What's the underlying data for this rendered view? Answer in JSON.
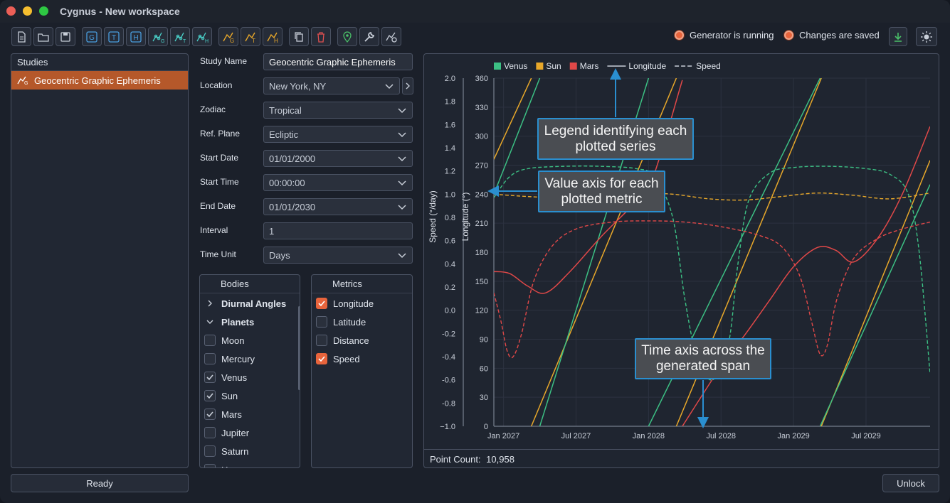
{
  "window": {
    "title": "Cygnus - New workspace"
  },
  "toolbar": {
    "buttons": [
      {
        "name": "new-file-icon",
        "color": "#c8ced8"
      },
      {
        "name": "open-folder-icon",
        "color": "#c8ced8"
      },
      {
        "name": "save-icon",
        "color": "#c8ced8"
      },
      {
        "name": "g-study-icon",
        "color": "#4a9fe0",
        "glyph": "G"
      },
      {
        "name": "t-study-icon",
        "color": "#4a9fe0",
        "glyph": "T"
      },
      {
        "name": "h-study-icon",
        "color": "#4a9fe0",
        "glyph": "H"
      },
      {
        "name": "graph-g-icon",
        "color": "#4ad0c8"
      },
      {
        "name": "graph-t-icon",
        "color": "#4ad0c8"
      },
      {
        "name": "graph-h-icon",
        "color": "#4ad0c8"
      },
      {
        "name": "chart-g-icon",
        "color": "#e8a82a"
      },
      {
        "name": "chart-t-icon",
        "color": "#e8a82a"
      },
      {
        "name": "chart-h-icon",
        "color": "#e8a82a"
      },
      {
        "name": "copy-icon",
        "color": "#c8ced8"
      },
      {
        "name": "trash-icon",
        "color": "#e05050"
      },
      {
        "name": "location-pin-icon",
        "color": "#4ac068"
      },
      {
        "name": "wrench-icon",
        "color": "#c8ced8"
      },
      {
        "name": "settings-gear-icon",
        "color": "#c8ced8"
      }
    ],
    "status_generator": "Generator is running",
    "status_saved": "Changes are saved"
  },
  "studies": {
    "header": "Studies",
    "items": [
      {
        "label": "Geocentric Graphic Ephemeris"
      }
    ]
  },
  "status_bar": {
    "ready": "Ready",
    "unlock": "Unlock"
  },
  "form": {
    "study_name": {
      "label": "Study Name",
      "value": "Geocentric Graphic Ephemeris"
    },
    "location": {
      "label": "Location",
      "value": "New York, NY"
    },
    "zodiac": {
      "label": "Zodiac",
      "value": "Tropical"
    },
    "ref_plane": {
      "label": "Ref. Plane",
      "value": "Ecliptic"
    },
    "start_date": {
      "label": "Start Date",
      "value": "01/01/2000"
    },
    "start_time": {
      "label": "Start Time",
      "value": "00:00:00"
    },
    "end_date": {
      "label": "End Date",
      "value": "01/01/2030"
    },
    "interval": {
      "label": "Interval",
      "value": "1"
    },
    "time_unit": {
      "label": "Time Unit",
      "value": "Days"
    }
  },
  "bodies": {
    "header": "Bodies",
    "groups": [
      {
        "label": "Diurnal Angles",
        "expanded": false
      },
      {
        "label": "Planets",
        "expanded": true
      }
    ],
    "items": [
      {
        "label": "Moon",
        "checked": false
      },
      {
        "label": "Mercury",
        "checked": false
      },
      {
        "label": "Venus",
        "checked": true
      },
      {
        "label": "Sun",
        "checked": true
      },
      {
        "label": "Mars",
        "checked": true
      },
      {
        "label": "Jupiter",
        "checked": false
      },
      {
        "label": "Saturn",
        "checked": false
      },
      {
        "label": "U...",
        "checked": false
      }
    ]
  },
  "metrics": {
    "header": "Metrics",
    "items": [
      {
        "label": "Longitude",
        "checked": true
      },
      {
        "label": "Latitude",
        "checked": false
      },
      {
        "label": "Distance",
        "checked": false
      },
      {
        "label": "Speed",
        "checked": true
      }
    ]
  },
  "point_count": {
    "label": "Point Count:",
    "value": "10,958"
  },
  "callouts": {
    "legend": "Legend identifying each plotted series",
    "value_axis": "Value axis for each plotted metric",
    "time_axis": "Time axis across the generated span"
  },
  "chart_data": {
    "type": "line",
    "legend": [
      {
        "name": "Venus",
        "kind": "swatch",
        "color": "#3cc084"
      },
      {
        "name": "Sun",
        "kind": "swatch",
        "color": "#e8a82a"
      },
      {
        "name": "Mars",
        "kind": "swatch",
        "color": "#e04848"
      },
      {
        "name": "Longitude",
        "kind": "solid",
        "color": "#c8ced8"
      },
      {
        "name": "Speed",
        "kind": "dashed",
        "color": "#c8ced8"
      }
    ],
    "x_ticks": [
      "Jan 2027",
      "Jul 2027",
      "Jan 2028",
      "Jul 2028",
      "Jan 2029",
      "Jul 2029"
    ],
    "x_tick_months": [
      0,
      6,
      12,
      18,
      24,
      30
    ],
    "x_range_months": [
      -0.8,
      35.3
    ],
    "y_left": {
      "label": "Speed (°/day)",
      "range": [
        -1.0,
        2.0
      ],
      "ticks": [
        "2.0",
        "1.8",
        "1.6",
        "1.4",
        "1.2",
        "1.0",
        "0.8",
        "0.6",
        "0.4",
        "0.2",
        "0.0",
        "-0.2",
        "-0.4",
        "-0.6",
        "-0.8",
        "−1.0"
      ]
    },
    "y_right": {
      "label": "Longitude (°)",
      "range": [
        0,
        360
      ],
      "ticks": [
        "360",
        "330",
        "300",
        "270",
        "240",
        "210",
        "180",
        "150",
        "120",
        "90",
        "60",
        "30",
        "0"
      ]
    },
    "series": [
      {
        "name": "Sun",
        "metric": "Longitude",
        "color": "#e8a82a",
        "segments": [
          [
            [
              -0.8,
              276
            ],
            [
              2.3,
              360
            ]
          ],
          [
            [
              2.3,
              0
            ],
            [
              14.3,
              360
            ]
          ],
          [
            [
              14.3,
              0
            ],
            [
              26.3,
              360
            ]
          ],
          [
            [
              26.3,
              0
            ],
            [
              35.3,
              275
            ]
          ]
        ]
      },
      {
        "name": "Venus",
        "metric": "Longitude",
        "color": "#3cc084",
        "segments": [
          [
            [
              -0.8,
              240
            ],
            [
              3.0,
              360
            ]
          ],
          [
            [
              3.0,
              0
            ],
            [
              12.0,
              360
            ]
          ],
          [
            [
              12.0,
              0
            ],
            [
              26.2,
              360
            ]
          ],
          [
            [
              26.2,
              0
            ],
            [
              35.3,
              250
            ]
          ]
        ]
      },
      {
        "name": "Mars",
        "metric": "Longitude",
        "color": "#e04848",
        "segments": [
          [
            [
              -0.8,
              160
            ],
            [
              0.5,
              158
            ],
            [
              2.0,
              145
            ],
            [
              3.5,
              138
            ],
            [
              5.5,
              160
            ],
            [
              8.0,
              195
            ],
            [
              10.0,
              220
            ],
            [
              12.0,
              245
            ],
            [
              14.8,
              358
            ]
          ],
          [
            [
              14.8,
              0
            ],
            [
              18.0,
              62
            ],
            [
              20.0,
              95
            ],
            [
              22.0,
              130
            ],
            [
              24.0,
              165
            ],
            [
              26.0,
              185
            ],
            [
              27.5,
              182
            ],
            [
              29.0,
              170
            ],
            [
              31.0,
              195
            ],
            [
              33.0,
              240
            ],
            [
              35.3,
              310
            ]
          ]
        ]
      },
      {
        "name": "Sun",
        "metric": "Speed",
        "color": "#e8a82a",
        "dashed": true,
        "points": [
          [
            -0.8,
            1.0
          ],
          [
            2,
            0.98
          ],
          [
            5,
            0.97
          ],
          [
            8,
            0.99
          ],
          [
            11,
            1.01
          ],
          [
            14,
            1.0
          ],
          [
            17,
            0.96
          ],
          [
            20,
            0.95
          ],
          [
            23,
            0.98
          ],
          [
            26,
            1.01
          ],
          [
            29,
            0.99
          ],
          [
            32,
            0.96
          ],
          [
            35.3,
            1.01
          ]
        ]
      },
      {
        "name": "Venus",
        "metric": "Speed",
        "color": "#3cc084",
        "dashed": true,
        "points": [
          [
            -0.8,
            0.97
          ],
          [
            0.5,
            1.15
          ],
          [
            2,
            1.22
          ],
          [
            5,
            1.24
          ],
          [
            8,
            1.24
          ],
          [
            11,
            1.22
          ],
          [
            12.5,
            1.15
          ],
          [
            14,
            0.8
          ],
          [
            15,
            0.1
          ],
          [
            16,
            -0.4
          ],
          [
            17.3,
            -0.6
          ],
          [
            18.6,
            -0.3
          ],
          [
            19.4,
            0.4
          ],
          [
            20.3,
            0.95
          ],
          [
            22,
            1.18
          ],
          [
            24,
            1.23
          ],
          [
            27,
            1.24
          ],
          [
            30,
            1.22
          ],
          [
            32,
            1.17
          ],
          [
            33.5,
            1.0
          ],
          [
            34.4,
            0.5
          ],
          [
            35.3,
            -0.55
          ]
        ]
      },
      {
        "name": "Mars",
        "metric": "Speed",
        "color": "#e04848",
        "dashed": true,
        "points": [
          [
            -0.8,
            0.15
          ],
          [
            -0.2,
            -0.1
          ],
          [
            0.3,
            -0.35
          ],
          [
            0.8,
            -0.4
          ],
          [
            1.5,
            -0.2
          ],
          [
            2.5,
            0.25
          ],
          [
            4,
            0.55
          ],
          [
            6,
            0.7
          ],
          [
            9,
            0.76
          ],
          [
            12,
            0.77
          ],
          [
            15,
            0.76
          ],
          [
            18,
            0.72
          ],
          [
            21,
            0.65
          ],
          [
            23,
            0.55
          ],
          [
            24.5,
            0.3
          ],
          [
            25.5,
            -0.1
          ],
          [
            26.2,
            -0.38
          ],
          [
            26.8,
            -0.3
          ],
          [
            27.6,
            0.1
          ],
          [
            29,
            0.45
          ],
          [
            31,
            0.62
          ],
          [
            33,
            0.7
          ],
          [
            35.3,
            0.76
          ]
        ]
      }
    ]
  }
}
